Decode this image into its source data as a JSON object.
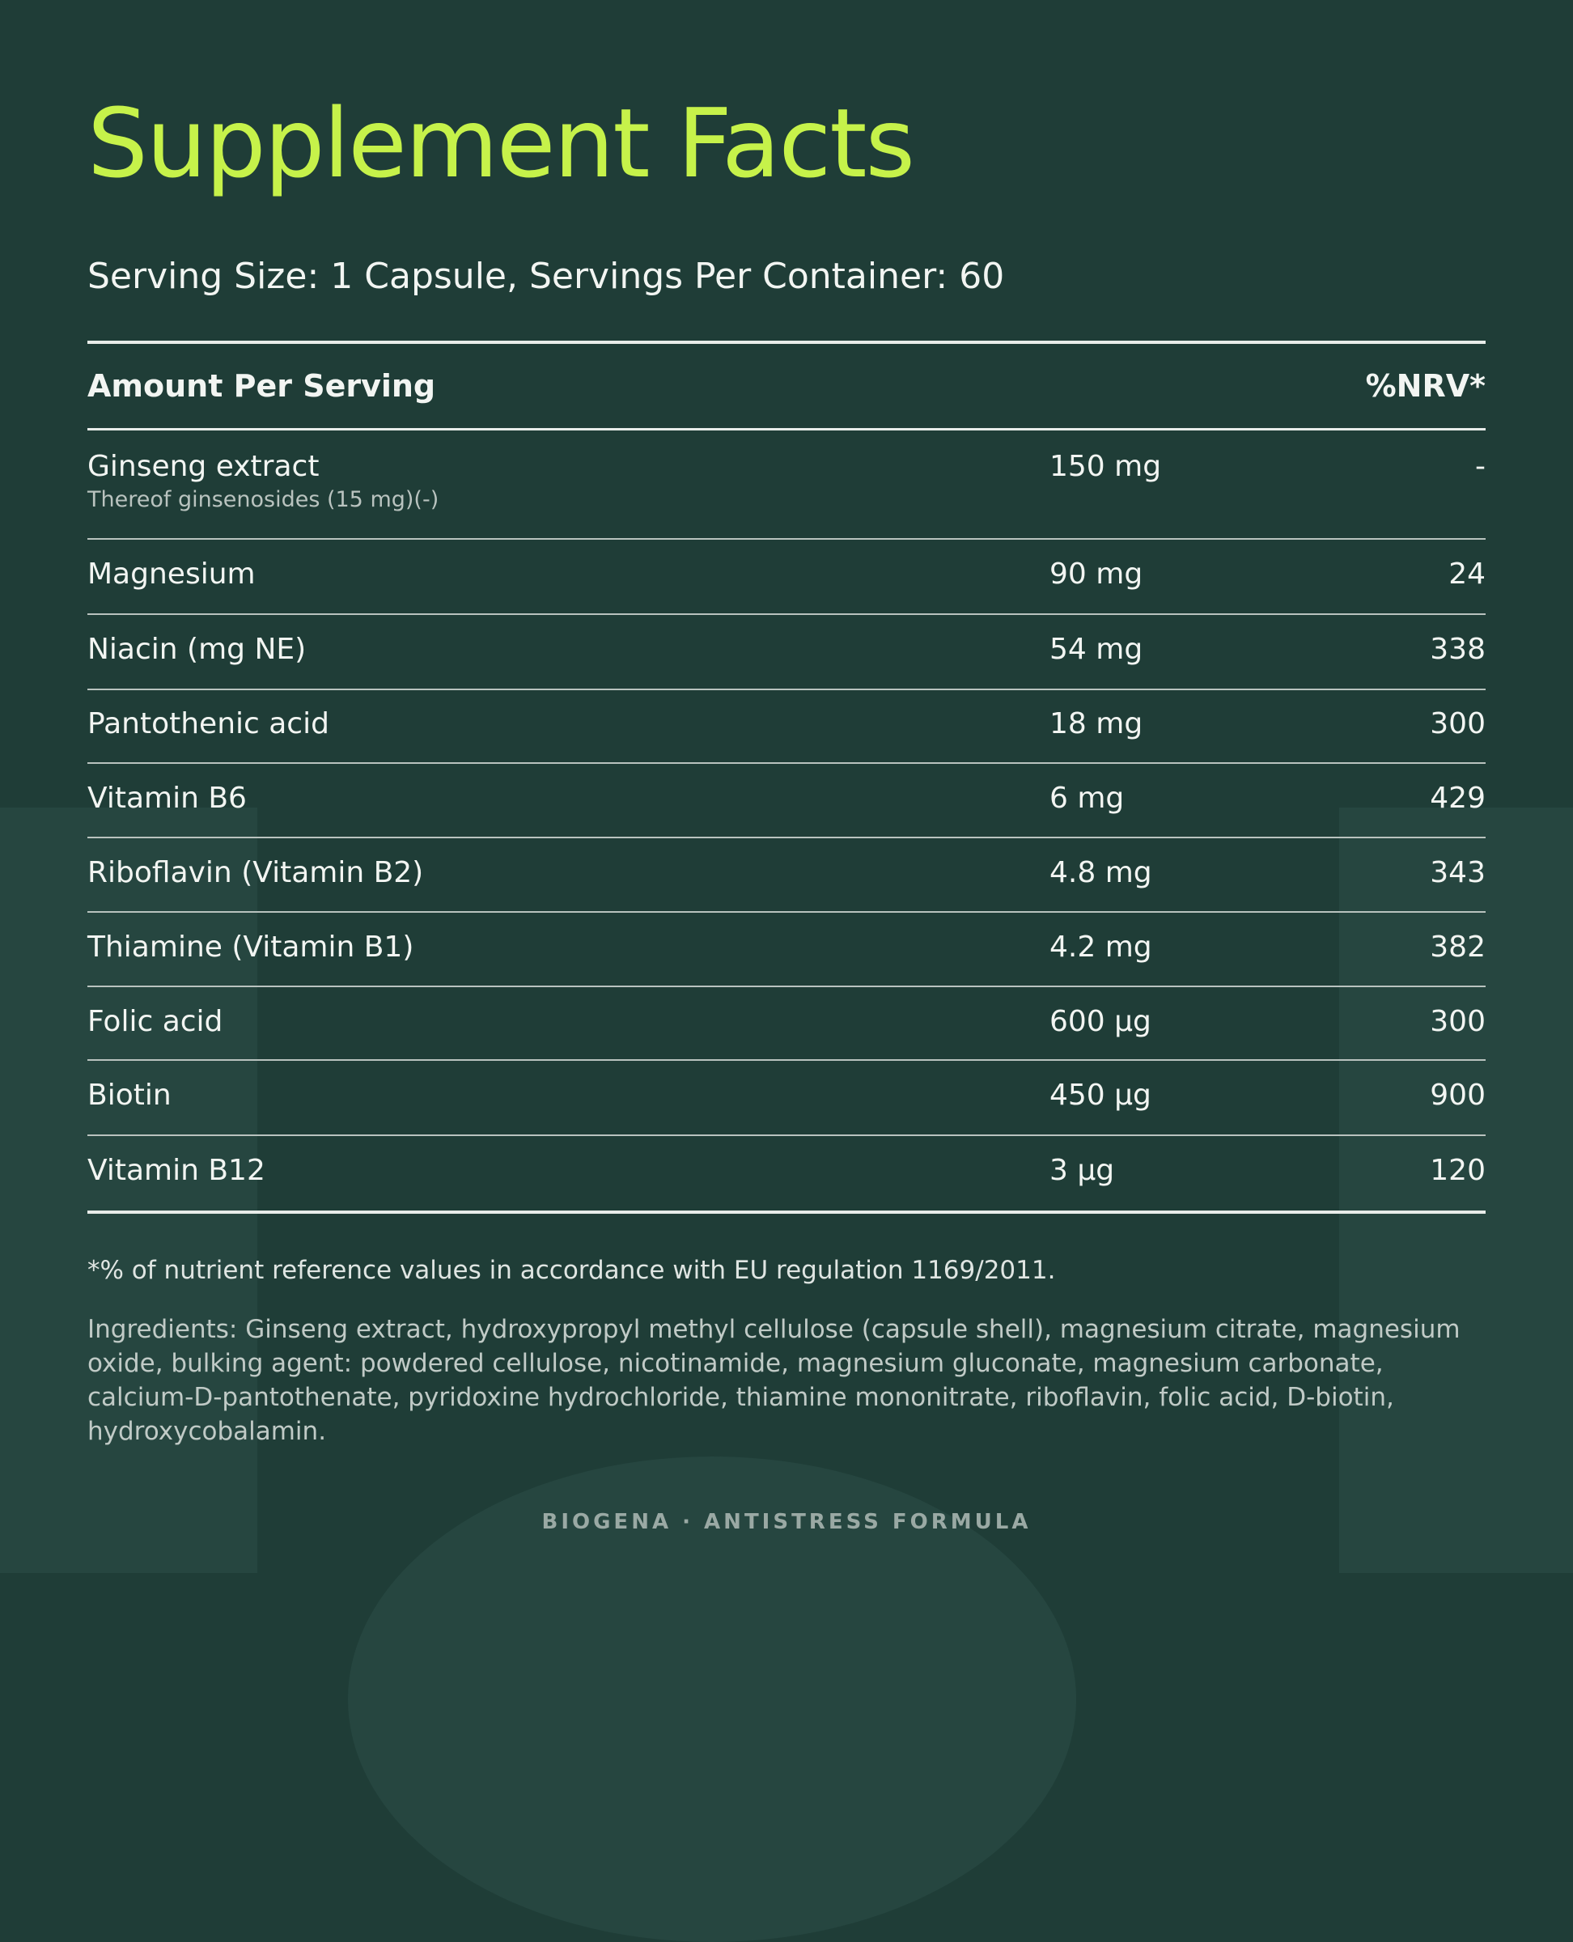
{
  "header": {
    "title": "Supplement Facts",
    "serving": "Serving Size: 1 Capsule, Servings Per Container: 60"
  },
  "table": {
    "columns": [
      "Amount Per Serving",
      "%NRV*"
    ],
    "rows": [
      {
        "name": "Ginseng extract",
        "note": "Thereof ginsenosides (15 mg)(-)",
        "amount": "150 mg",
        "nrv": "-"
      },
      {
        "name": "Magnesium",
        "amount": "90 mg",
        "nrv": "24"
      },
      {
        "name": "Niacin (mg NE)",
        "amount": "54 mg",
        "nrv": "338"
      },
      {
        "name": "Pantothenic acid",
        "amount": "18 mg",
        "nrv": "300"
      },
      {
        "name": "Vitamin B6",
        "amount": "6 mg",
        "nrv": "429"
      },
      {
        "name": "Riboflavin (Vitamin B2)",
        "amount": "4.8 mg",
        "nrv": "343"
      },
      {
        "name": "Thiamine (Vitamin B1)",
        "amount": "4.2 mg",
        "nrv": "382"
      },
      {
        "name": "Folic acid",
        "amount": "600 µg",
        "nrv": "300"
      },
      {
        "name": "Biotin",
        "amount": "450 µg",
        "nrv": "900"
      },
      {
        "name": "Vitamin B12",
        "amount": "3 µg",
        "nrv": "120"
      }
    ]
  },
  "footnote": "*% of nutrient reference values in accordance with EU regulation 1169/2011.",
  "ingredients": "Ingredients: Ginseng extract, hydroxypropyl methyl cellulose (capsule shell), magnesium citrate, magnesium oxide, bulking agent: powdered cellulose, nicotinamide, magnesium gluconate, magnesium carbonate, calcium-D-pantothenate, pyridoxine hydrochloride, thiamine mononitrate, riboflavin, folic acid, D-biotin, hydroxycobalamin.",
  "footer": "BIOGENA · ANTISTRESS FORMULA"
}
